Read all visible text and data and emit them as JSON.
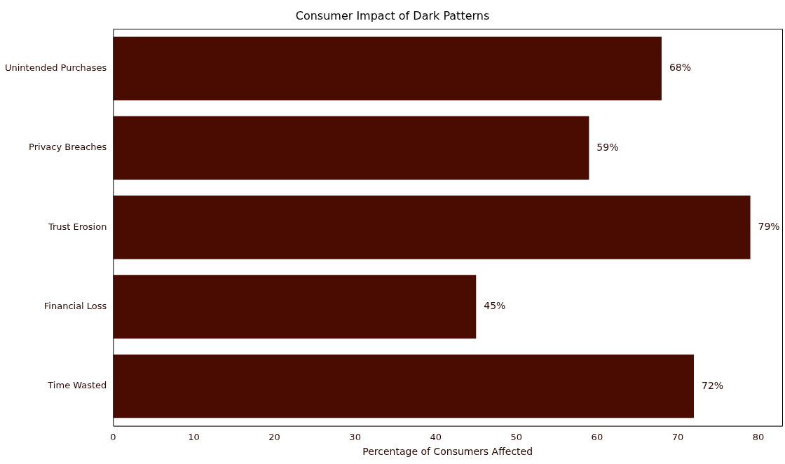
{
  "chart_data": {
    "type": "bar",
    "orientation": "horizontal",
    "title": "Consumer Impact of Dark Patterns",
    "xlabel": "Percentage of Consumers Affected",
    "categories": [
      "Unintended Purchases",
      "Privacy Breaches",
      "Trust Erosion",
      "Financial Loss",
      "Time Wasted"
    ],
    "values": [
      68,
      59,
      79,
      45,
      72
    ],
    "color": "#4a0c00",
    "value_labels": [
      "68%",
      "59%",
      "79%",
      "45%",
      "72%"
    ],
    "xlim": [
      0,
      82.95
    ],
    "xticks": [
      0,
      10,
      20,
      30,
      40,
      50,
      60,
      70,
      80
    ],
    "grid": false,
    "legend": false
  }
}
